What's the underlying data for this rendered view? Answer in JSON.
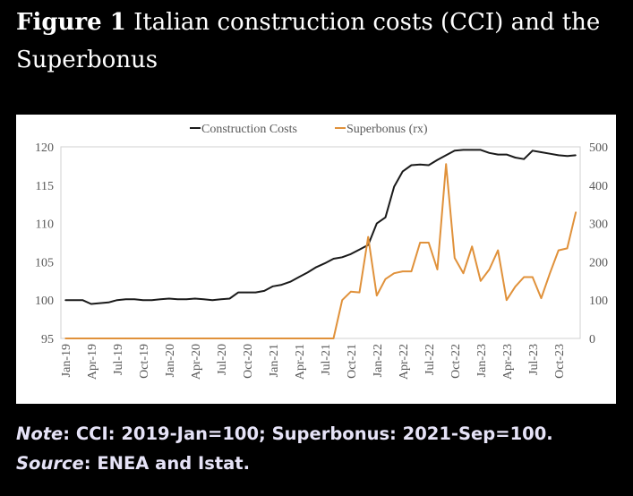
{
  "figure": {
    "label": "Figure 1",
    "title_line1": "Italian construction costs (CCI) and the",
    "title_line2": "Superbonus"
  },
  "note": {
    "label": "Note",
    "text": ": CCI: 2019-Jan=100; Superbonus: 2021-Sep=100.",
    "source_label": "Source",
    "source_text": ": ENEA and Istat."
  },
  "chart_data": {
    "type": "line",
    "title": "",
    "legend": [
      "Construction Costs",
      "Superbonus  (rx)"
    ],
    "legend_position": "top-center",
    "x_tick_labels": [
      "Jan-19",
      "Apr-19",
      "Jul-19",
      "Oct-19",
      "Jan-20",
      "Apr-20",
      "Jul-20",
      "Oct-20",
      "Jan-21",
      "Apr-21",
      "Jul-21",
      "Oct-21",
      "Jan-22",
      "Apr-22",
      "Jul-22",
      "Oct-22",
      "Jan-23",
      "Apr-23",
      "Jul-23",
      "Oct-23"
    ],
    "y_left": {
      "min": 95,
      "max": 120,
      "ticks": [
        95,
        100,
        105,
        110,
        115,
        120
      ]
    },
    "y_right": {
      "min": 0,
      "max": 500,
      "ticks": [
        0,
        100,
        200,
        300,
        400,
        500
      ]
    },
    "series": [
      {
        "name": "Construction Costs",
        "axis": "left",
        "color": "#1a1a1a",
        "start": "Jan-19",
        "values": [
          100,
          100,
          100,
          99.5,
          99.6,
          99.7,
          100,
          100.1,
          100.1,
          100,
          100,
          100.1,
          100.2,
          100.1,
          100.1,
          100.2,
          100.1,
          100,
          100.1,
          100.2,
          101,
          101,
          101,
          101.2,
          101.8,
          102,
          102.4,
          103,
          103.6,
          104.3,
          104.8,
          105.4,
          105.6,
          106,
          106.6,
          107.2,
          110,
          110.8,
          114.8,
          116.8,
          117.6,
          117.7,
          117.6,
          118.3,
          118.9,
          119.5,
          119.6,
          119.6,
          119.6,
          119.2,
          119,
          119,
          118.6,
          118.4,
          119.5,
          119.3,
          119.1,
          118.9,
          118.8,
          118.9
        ]
      },
      {
        "name": "Superbonus  (rx)",
        "axis": "right",
        "color": "#e0913a",
        "start": "Jan-19",
        "values": [
          0,
          0,
          0,
          0,
          0,
          0,
          0,
          0,
          0,
          0,
          0,
          0,
          0,
          0,
          0,
          0,
          0,
          0,
          0,
          0,
          0,
          0,
          0,
          0,
          0,
          0,
          0,
          0,
          0,
          0,
          0,
          0,
          100,
          122,
          120,
          265,
          112,
          155,
          170,
          175,
          175,
          250,
          250,
          180,
          455,
          210,
          170,
          240,
          150,
          180,
          230,
          100,
          135,
          160,
          160,
          105,
          170,
          230,
          235,
          330
        ]
      }
    ]
  }
}
